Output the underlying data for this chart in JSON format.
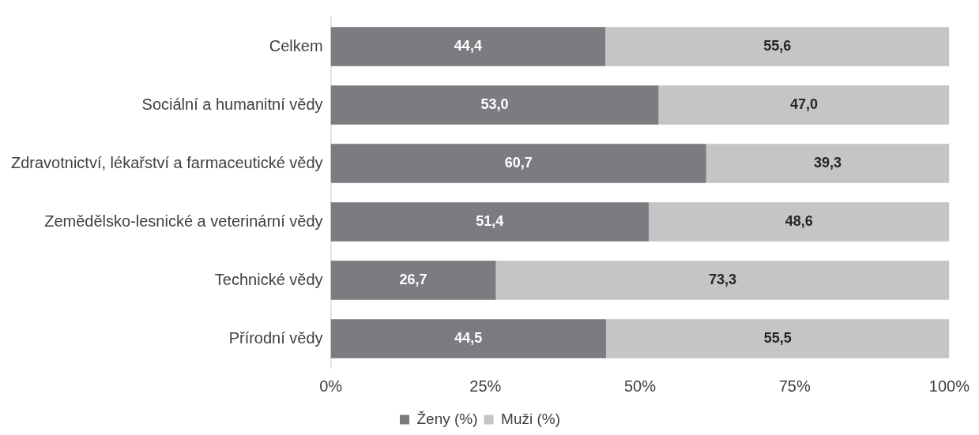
{
  "chart_data": {
    "type": "bar",
    "orientation": "horizontal",
    "stacked": true,
    "categories": [
      "Celkem",
      "Sociální a humanitní vědy",
      "Zdravotnictví, lékařství a farmaceutické vědy",
      "Zemědělsko-lesnické a veterinární vědy",
      "Technické vědy",
      "Přírodní vědy"
    ],
    "series": [
      {
        "name": "Ženy (%)",
        "color": "#7b7c80",
        "values": [
          44.4,
          53.0,
          60.7,
          51.4,
          26.7,
          44.5
        ],
        "value_labels": [
          "44,4",
          "53,0",
          "60,7",
          "51,4",
          "26,7",
          "44,5"
        ]
      },
      {
        "name": "Muži (%)",
        "color": "#c4c5c7",
        "values": [
          55.6,
          47.0,
          39.3,
          48.6,
          73.3,
          55.5
        ],
        "value_labels": [
          "55,6",
          "47,0",
          "39,3",
          "48,6",
          "73,3",
          "55,5"
        ]
      }
    ],
    "xlim": [
      0,
      100
    ],
    "xticks": [
      {
        "value": 0,
        "label": "0%"
      },
      {
        "value": 25,
        "label": "25%"
      },
      {
        "value": 50,
        "label": "50%"
      },
      {
        "value": 75,
        "label": "75%"
      },
      {
        "value": 100,
        "label": "100%"
      }
    ],
    "grid": false,
    "legend": "bottom"
  }
}
